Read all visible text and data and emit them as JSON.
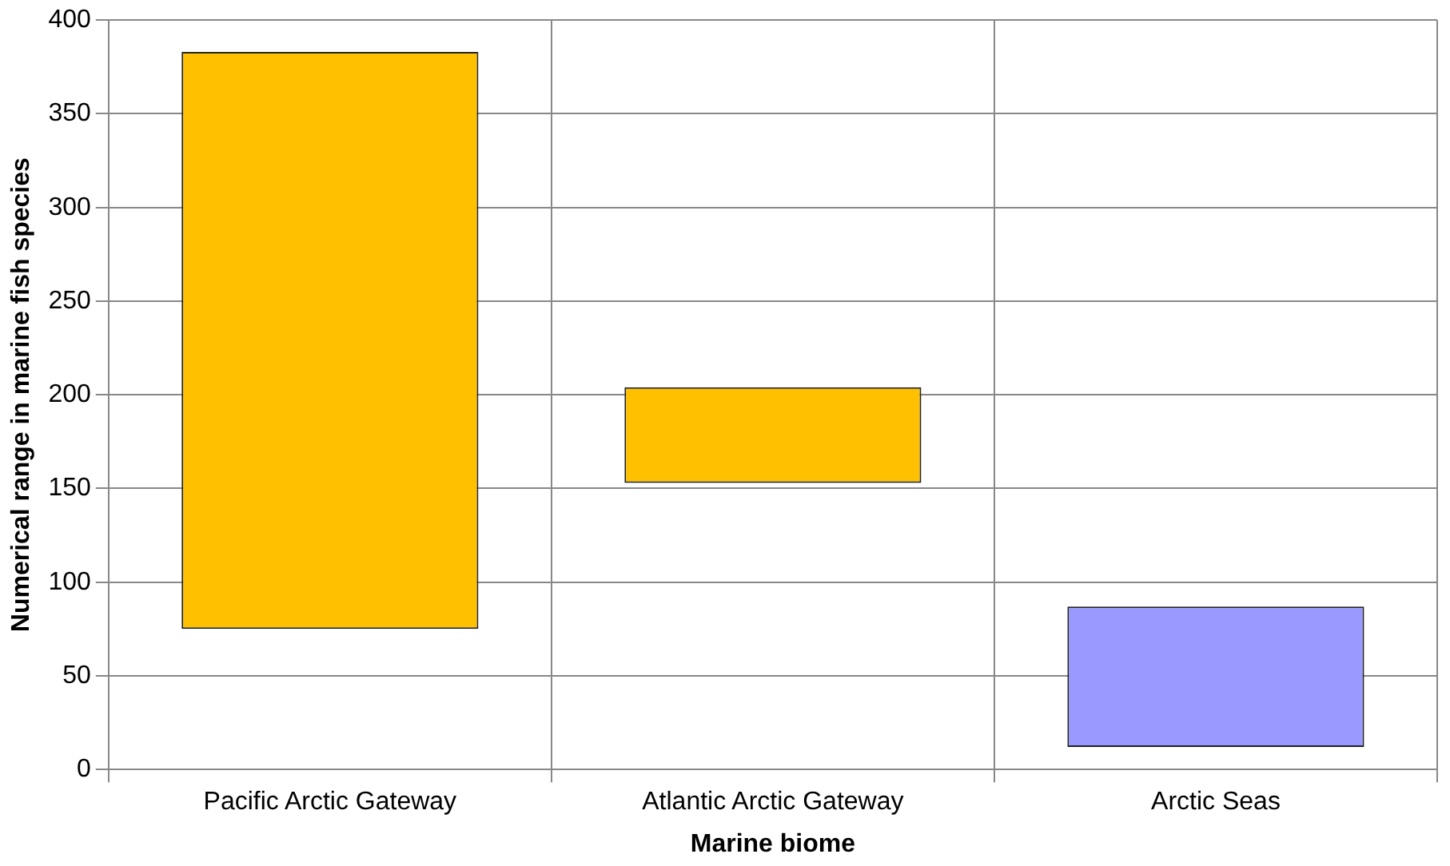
{
  "chart_data": {
    "type": "bar",
    "xlabel": "Marine biome",
    "ylabel": "Numerical range in marine fish species",
    "categories": [
      "Pacific Arctic Gateway",
      "Atlantic Arctic Gateway",
      "Arctic Seas"
    ],
    "base": [
      75,
      153,
      12
    ],
    "values": [
      308,
      51,
      75
    ],
    "colors": [
      "#ffc000",
      "#ffc000",
      "#9999ff"
    ],
    "ylim": [
      0,
      400
    ],
    "yticks": [
      0,
      50,
      100,
      150,
      200,
      250,
      300,
      350,
      400
    ],
    "grid": true
  }
}
